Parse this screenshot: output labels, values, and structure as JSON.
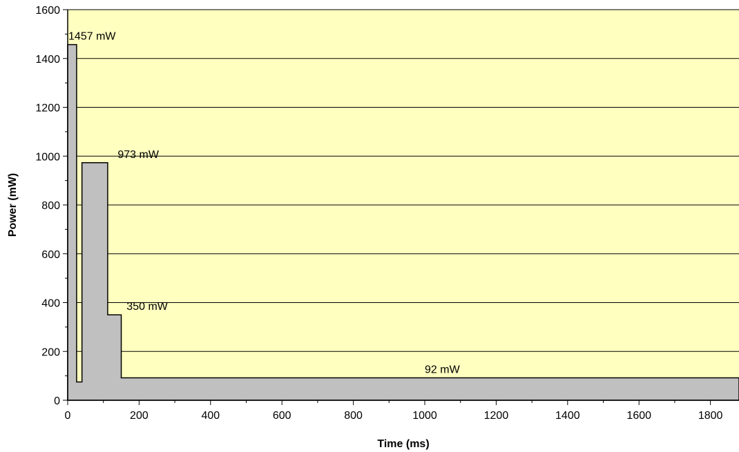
{
  "chart_data": {
    "type": "area",
    "xlabel": "Time (ms)",
    "ylabel": "Power (mW)",
    "xlim": [
      0,
      1880
    ],
    "ylim": [
      0,
      1600
    ],
    "x_ticks": [
      0,
      200,
      400,
      600,
      800,
      1000,
      1200,
      1400,
      1600,
      1800
    ],
    "y_ticks": [
      0,
      200,
      400,
      600,
      800,
      1000,
      1200,
      1400,
      1600
    ],
    "grid": "horizontal",
    "colors": {
      "plot_bg": "#ffffc0",
      "fill": "#c0c0c0",
      "line": "#000000"
    },
    "series": [
      {
        "points": [
          [
            0,
            1457
          ],
          [
            25,
            1457
          ],
          [
            25,
            75
          ],
          [
            40,
            75
          ],
          [
            40,
            973
          ],
          [
            112,
            973
          ],
          [
            112,
            350
          ],
          [
            150,
            350
          ],
          [
            150,
            92
          ],
          [
            1880,
            92
          ]
        ]
      }
    ],
    "annotations": [
      {
        "text": "1457 mW",
        "x": 2,
        "y": 1457
      },
      {
        "text": "973 mW",
        "x": 140,
        "y": 973
      },
      {
        "text": "350 mW",
        "x": 165,
        "y": 350
      },
      {
        "text": "92 mW",
        "x": 1000,
        "y": 92
      }
    ]
  }
}
